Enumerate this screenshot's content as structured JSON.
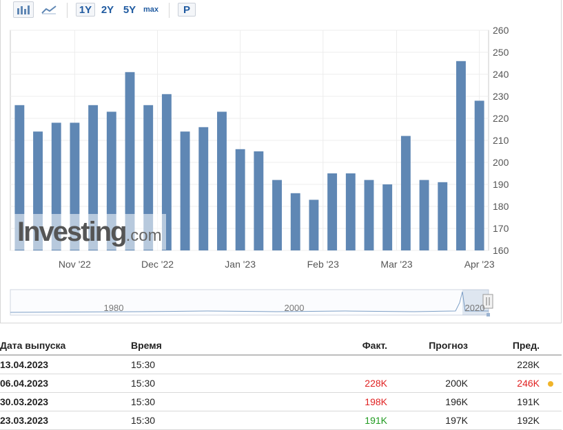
{
  "toolbar": {
    "ranges": [
      "1Y",
      "2Y",
      "5Y",
      "max"
    ],
    "active_range": "1Y",
    "p_label": "P"
  },
  "watermark": {
    "brand": "Investing",
    "suffix": ".com"
  },
  "chart_data": {
    "type": "bar",
    "color": "#5f87b4",
    "y_ticks": [
      160,
      170,
      180,
      190,
      200,
      210,
      220,
      230,
      240,
      250,
      260
    ],
    "ylim": [
      160,
      260
    ],
    "x_labels": [
      "Nov '22",
      "Dec '22",
      "Jan '23",
      "Feb '23",
      "Mar '23",
      "Apr '23"
    ],
    "values": [
      226,
      214,
      218,
      218,
      226,
      223,
      241,
      226,
      231,
      214,
      216,
      223,
      206,
      205,
      192,
      186,
      183,
      195,
      195,
      192,
      190,
      212,
      192,
      191,
      246,
      228
    ],
    "navigator_labels": [
      "1980",
      "2000",
      "2020"
    ],
    "grid": true
  },
  "table": {
    "headers": [
      "Дата выпуска",
      "Время",
      "Факт.",
      "Прогноз",
      "Пред."
    ],
    "rows": [
      {
        "date": "13.04.2023",
        "time": "15:30",
        "actual": "",
        "actual_color": "",
        "forecast": "",
        "previous": "228K",
        "previous_color": "",
        "indicator": false
      },
      {
        "date": "06.04.2023",
        "time": "15:30",
        "actual": "228K",
        "actual_color": "red",
        "forecast": "200K",
        "previous": "246K",
        "previous_color": "red",
        "indicator": true
      },
      {
        "date": "30.03.2023",
        "time": "15:30",
        "actual": "198K",
        "actual_color": "red",
        "forecast": "196K",
        "previous": "191K",
        "previous_color": "",
        "indicator": false
      },
      {
        "date": "23.03.2023",
        "time": "15:30",
        "actual": "191K",
        "actual_color": "green",
        "forecast": "197K",
        "previous": "192K",
        "previous_color": "",
        "indicator": false
      }
    ]
  }
}
